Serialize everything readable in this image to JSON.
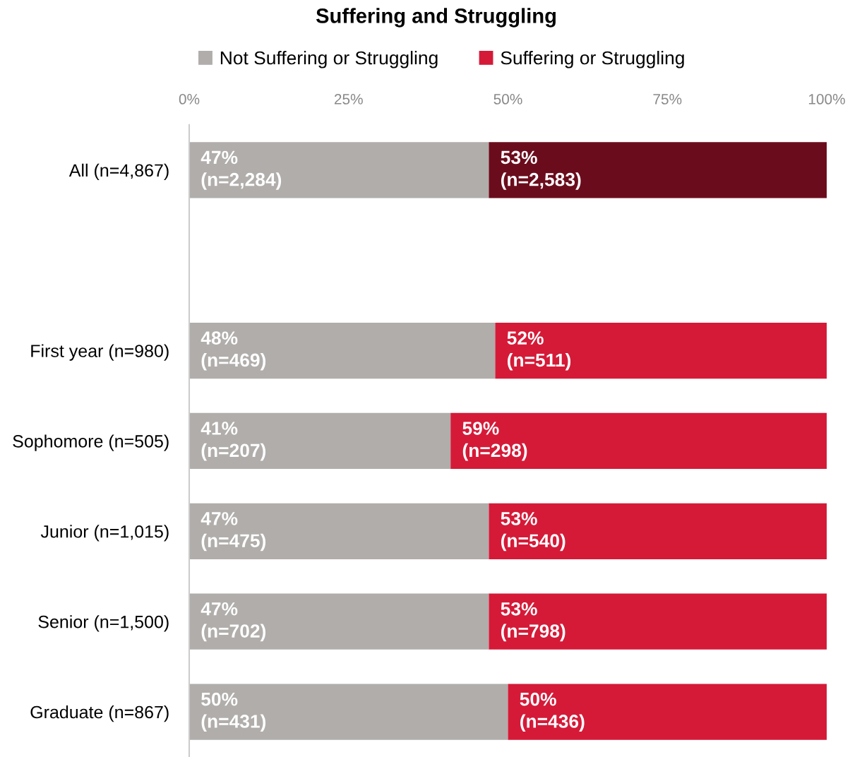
{
  "chart_data": {
    "type": "bar",
    "orientation": "horizontal",
    "stacked": true,
    "title": "Suffering and Struggling",
    "categories": [
      "All (n=4,867)",
      null,
      "First year (n=980)",
      "Sophomore (n=505)",
      "Junior (n=1,015)",
      "Senior (n=1,500)",
      "Graduate (n=867)"
    ],
    "series": [
      {
        "name": "Not Suffering or Struggling",
        "color": "#b0adab",
        "values": [
          47,
          null,
          48,
          41,
          47,
          47,
          50
        ],
        "value_labels": [
          "47%\n(n=2,284)",
          null,
          "48%\n(n=469)",
          "41%\n(n=207)",
          "47%\n(n=475)",
          "47%\n(n=702)",
          "50%\n(n=431)"
        ]
      },
      {
        "name": "Suffering or Struggling",
        "color": "#d51a38",
        "colors": [
          "#6b0c1c",
          null,
          "#d51a38",
          "#d51a38",
          "#d51a38",
          "#d51a38",
          "#d51a38"
        ],
        "values": [
          53,
          null,
          52,
          59,
          53,
          53,
          50
        ],
        "value_labels": [
          "53%\n(n=2,583)",
          null,
          "52%\n(n=511)",
          "59%\n(n=298)",
          "53%\n(n=540)",
          "53%\n(n=798)",
          "50%\n(n=436)"
        ]
      }
    ],
    "xlim": [
      0,
      100
    ],
    "xticks": [
      {
        "value": 0,
        "label": "0%"
      },
      {
        "value": 25,
        "label": "25%"
      },
      {
        "value": 50,
        "label": "50%"
      },
      {
        "value": 75,
        "label": "75%"
      },
      {
        "value": 100,
        "label": "100%"
      }
    ],
    "legend": "top",
    "grid": false
  }
}
